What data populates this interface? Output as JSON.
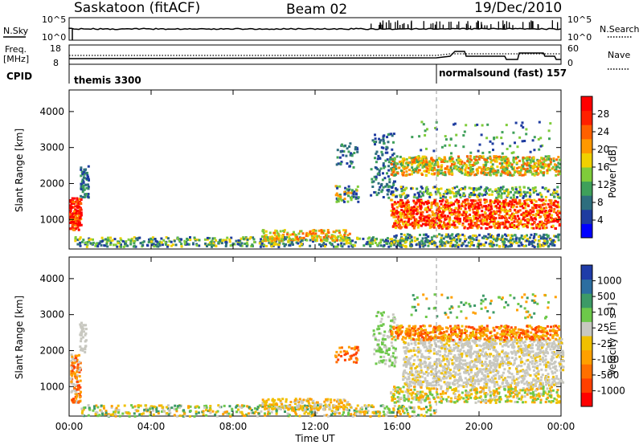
{
  "header": {
    "station": "Saskatoon (fitACF)",
    "beam": "Beam 02",
    "date": "19/Dec/2010"
  },
  "top_panels": {
    "nsky_label": "N.Sky",
    "nsky_ticks": [
      "10^5",
      "10^0"
    ],
    "nsearch_label": "N.Search",
    "nsearch_ticks": [
      "10^5",
      "10^0"
    ],
    "freq_label_1": "Freq.",
    "freq_label_2": "[MHz]",
    "freq_ticks": [
      "18",
      "8"
    ],
    "nave_label": "Nave",
    "nave_ticks": [
      "60",
      "0"
    ],
    "cpid_label": "CPID",
    "cpid_1": "themis 3300",
    "cpid_2": "normalsound (fast) 157"
  },
  "colors": {
    "power_scale": [
      "#0000ff",
      "#1e3ca0",
      "#2e6e7e",
      "#3fa05a",
      "#7fcc3a",
      "#f0d000",
      "#ff9800",
      "#ff6000",
      "#ff2000",
      "#ff0000"
    ],
    "velocity_scale": [
      "#1f3ca8",
      "#2c6ea0",
      "#3d9a66",
      "#6dc84a",
      "#c8c8c0",
      "#f0c000",
      "#ffa000",
      "#ff7000",
      "#ff4000",
      "#ff0000"
    ]
  },
  "chart_data": [
    {
      "type": "heatmap",
      "title": "Power",
      "ylabel": "Slant Range [km]",
      "xlabel": "Time UT",
      "x_ticks": [
        "00:00",
        "04:00",
        "08:00",
        "12:00",
        "16:00",
        "20:00",
        "00:00"
      ],
      "y_ticks": [
        "1000",
        "2000",
        "3000",
        "4000"
      ],
      "ylim": [
        180,
        4600
      ],
      "colorbar_label": "Power [dB]",
      "colorbar_ticks": [
        "4",
        "8",
        "12",
        "16",
        "20",
        "24",
        "28"
      ]
    },
    {
      "type": "heatmap",
      "title": "Velocity",
      "ylabel": "Slant Range [km]",
      "xlabel": "Time UT",
      "x_ticks": [
        "00:00",
        "04:00",
        "08:00",
        "12:00",
        "16:00",
        "20:00",
        "00:00"
      ],
      "y_ticks": [
        "1000",
        "2000",
        "3000",
        "4000"
      ],
      "ylim": [
        180,
        4600
      ],
      "colorbar_label": "Velocity [m s-1]",
      "colorbar_ticks": [
        "1000",
        "500",
        "100",
        "25",
        "-25",
        "-100",
        "-500",
        "-1000"
      ]
    }
  ],
  "xaxis_title": "Time UT"
}
